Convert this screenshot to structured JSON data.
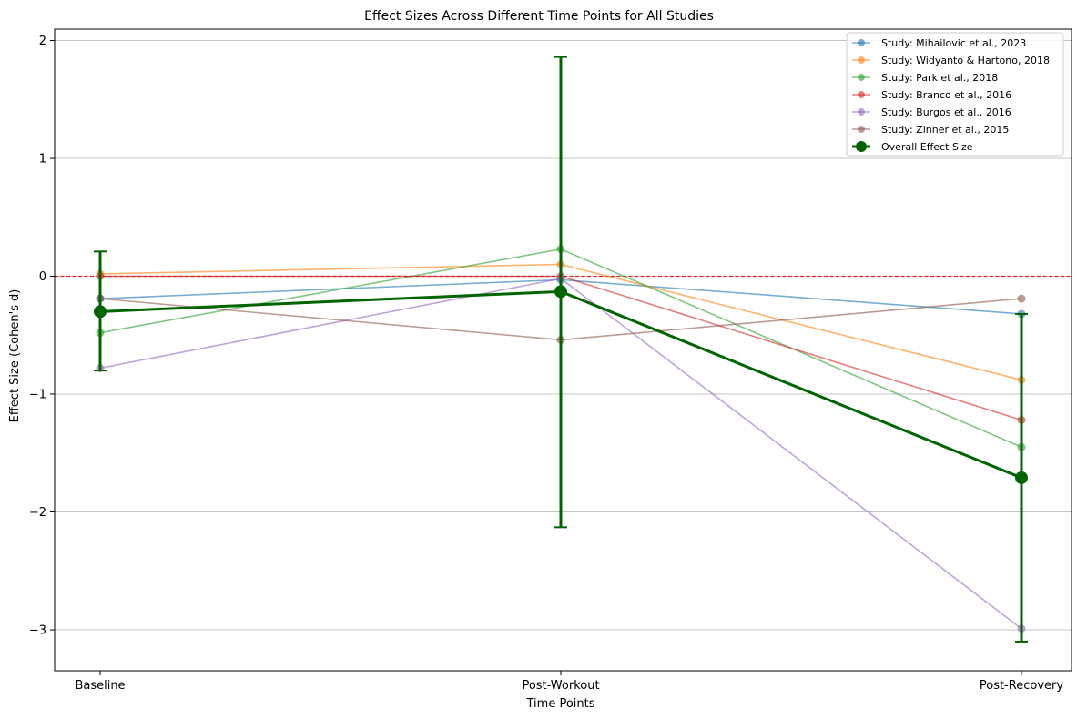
{
  "chart_data": {
    "type": "line",
    "title": "Effect Sizes Across Different Time Points for All Studies",
    "xlabel": "Time Points",
    "ylabel": "Effect Size (Cohen's d)",
    "categories": [
      "Baseline",
      "Post-Workout",
      "Post-Recovery"
    ],
    "ylim": [
      -3.33,
      2.1
    ],
    "yticks": [
      2,
      1,
      0,
      -1,
      -2,
      -3
    ],
    "ytick_labels": [
      "2",
      "1",
      "0",
      "−1",
      "−2",
      "−3"
    ],
    "grid": "y-axis",
    "reference_line": {
      "y": 0,
      "color": "#d62728",
      "style": "dashed"
    },
    "legend_position": "top-right",
    "series": [
      {
        "name": "Study: Mihailovic et al., 2023",
        "color": "#1f77b4",
        "values": [
          -0.19,
          -0.03,
          -0.32
        ]
      },
      {
        "name": "Study: Widyanto & Hartono, 2018",
        "color": "#ff7f0e",
        "values": [
          0.02,
          0.1,
          -0.88
        ]
      },
      {
        "name": "Study: Park et al., 2018",
        "color": "#2ca02c",
        "values": [
          -0.48,
          0.23,
          -1.45
        ]
      },
      {
        "name": "Study: Branco et al., 2016",
        "color": "#d62728",
        "values": [
          0.0,
          0.0,
          -1.22
        ]
      },
      {
        "name": "Study: Burgos et al., 2016",
        "color": "#9467bd",
        "values": [
          -0.78,
          -0.02,
          -2.99
        ]
      },
      {
        "name": "Study: Zinner et al., 2015",
        "color": "#8c564b",
        "values": [
          -0.19,
          -0.54,
          -0.19
        ]
      }
    ],
    "overall": {
      "name": "Overall Effect Size",
      "color": "#006400",
      "values": [
        -0.3,
        -0.13,
        -1.71
      ],
      "error_low": [
        -0.8,
        -2.13,
        -3.1
      ],
      "error_high": [
        0.21,
        1.86,
        -0.32
      ]
    }
  }
}
